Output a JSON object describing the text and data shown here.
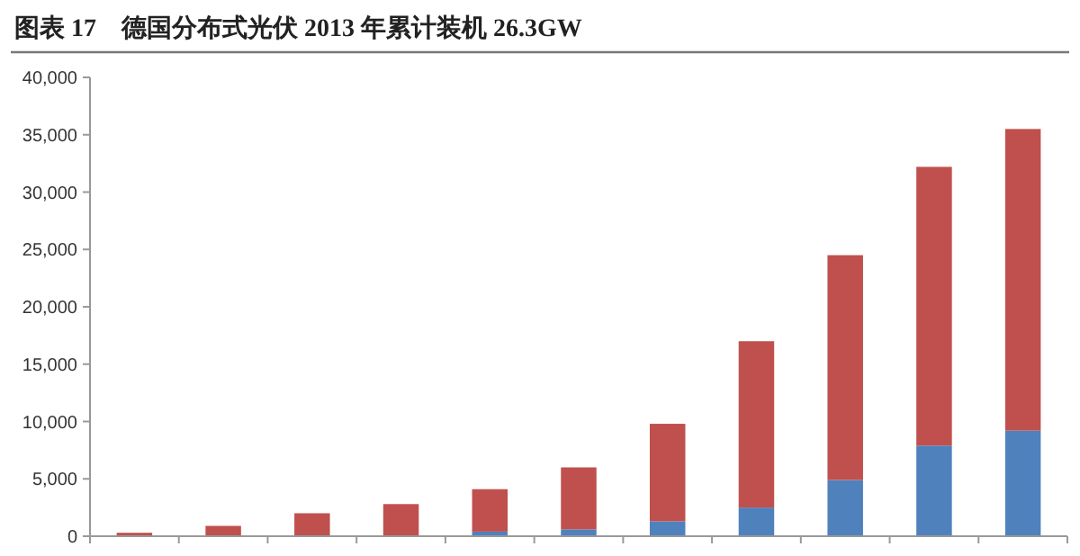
{
  "chart_data": {
    "type": "bar",
    "title": "图表 17　德国分布式光伏 2013 年累计装机 26.3GW",
    "stacked": true,
    "categories": [
      null,
      null,
      null,
      null,
      null,
      null,
      null,
      null,
      null,
      null,
      null
    ],
    "series": [
      {
        "color": "#4f81bd",
        "values": [
          0,
          0,
          0,
          0,
          400,
          600,
          1300,
          2500,
          4900,
          7900,
          9200
        ]
      },
      {
        "color": "#c0504d",
        "values": [
          300,
          900,
          2000,
          2800,
          3700,
          5400,
          8500,
          14500,
          19600,
          24300,
          26300
        ]
      }
    ],
    "ylim": [
      0,
      40000
    ],
    "yticks": [
      {
        "value": 0,
        "label": "0"
      },
      {
        "value": 5000,
        "label": "5,000"
      },
      {
        "value": 10000,
        "label": "10,000"
      },
      {
        "value": 15000,
        "label": "15,000"
      },
      {
        "value": 20000,
        "label": "20,000"
      },
      {
        "value": 25000,
        "label": "25,000"
      },
      {
        "value": 30000,
        "label": "30,000"
      },
      {
        "value": 35000,
        "label": "35,000"
      },
      {
        "value": 40000,
        "label": "40,000"
      }
    ],
    "grid": false
  }
}
